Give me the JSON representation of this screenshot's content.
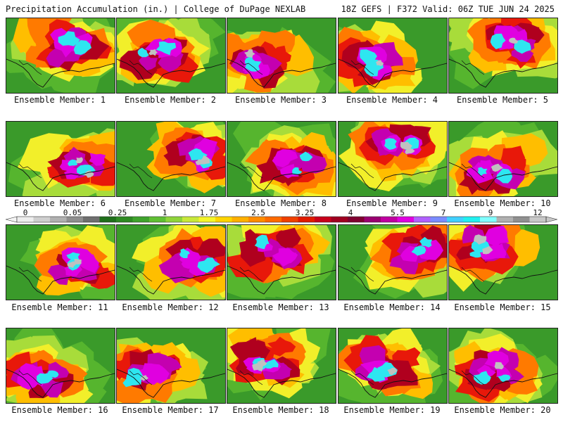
{
  "header": {
    "left": "Precipitation Accumulation (in.) | College of DuPage NEXLAB",
    "right": "18Z GEFS | F372 Valid: 06Z TUE JUN 24 2025"
  },
  "colorbar": {
    "labels": [
      "0",
      "0.05",
      "0.25",
      "1",
      "1.75",
      "2.5",
      "3.25",
      "4",
      "5.5",
      "7",
      "9",
      "12"
    ],
    "colors": [
      "#eeeeee",
      "#cfcfcf",
      "#b0b0b0",
      "#8f8f8f",
      "#6f6f6f",
      "#1f6f1a",
      "#2e8a22",
      "#3fa32c",
      "#5fbf33",
      "#8fd43a",
      "#c8e83a",
      "#f5f52a",
      "#ffd400",
      "#ffb000",
      "#ff8c00",
      "#ff6a00",
      "#f04000",
      "#e01a00",
      "#c8001a",
      "#a00020",
      "#800030",
      "#9a0070",
      "#c000a0",
      "#e000e0",
      "#b060ff",
      "#7a8cff",
      "#40d0ff",
      "#20f0f0",
      "#80ffff",
      "#b0b0b0",
      "#909090",
      "#c8c8c8"
    ]
  },
  "panels": [
    {
      "label": "Ensemble Member: 1"
    },
    {
      "label": "Ensemble Member: 2"
    },
    {
      "label": "Ensemble Member: 3"
    },
    {
      "label": "Ensemble Member: 4"
    },
    {
      "label": "Ensemble Member: 5"
    },
    {
      "label": "Ensemble Member: 6"
    },
    {
      "label": "Ensemble Member: 7"
    },
    {
      "label": "Ensemble Member: 8"
    },
    {
      "label": "Ensemble Member: 9"
    },
    {
      "label": "Ensemble Member: 10"
    },
    {
      "label": "Ensemble Member: 11"
    },
    {
      "label": "Ensemble Member: 12"
    },
    {
      "label": "Ensemble Member: 13"
    },
    {
      "label": "Ensemble Member: 14"
    },
    {
      "label": "Ensemble Member: 15"
    },
    {
      "label": "Ensemble Member: 16"
    },
    {
      "label": "Ensemble Member: 17"
    },
    {
      "label": "Ensemble Member: 18"
    },
    {
      "label": "Ensemble Member: 19"
    },
    {
      "label": "Ensemble Member: 20"
    }
  ]
}
